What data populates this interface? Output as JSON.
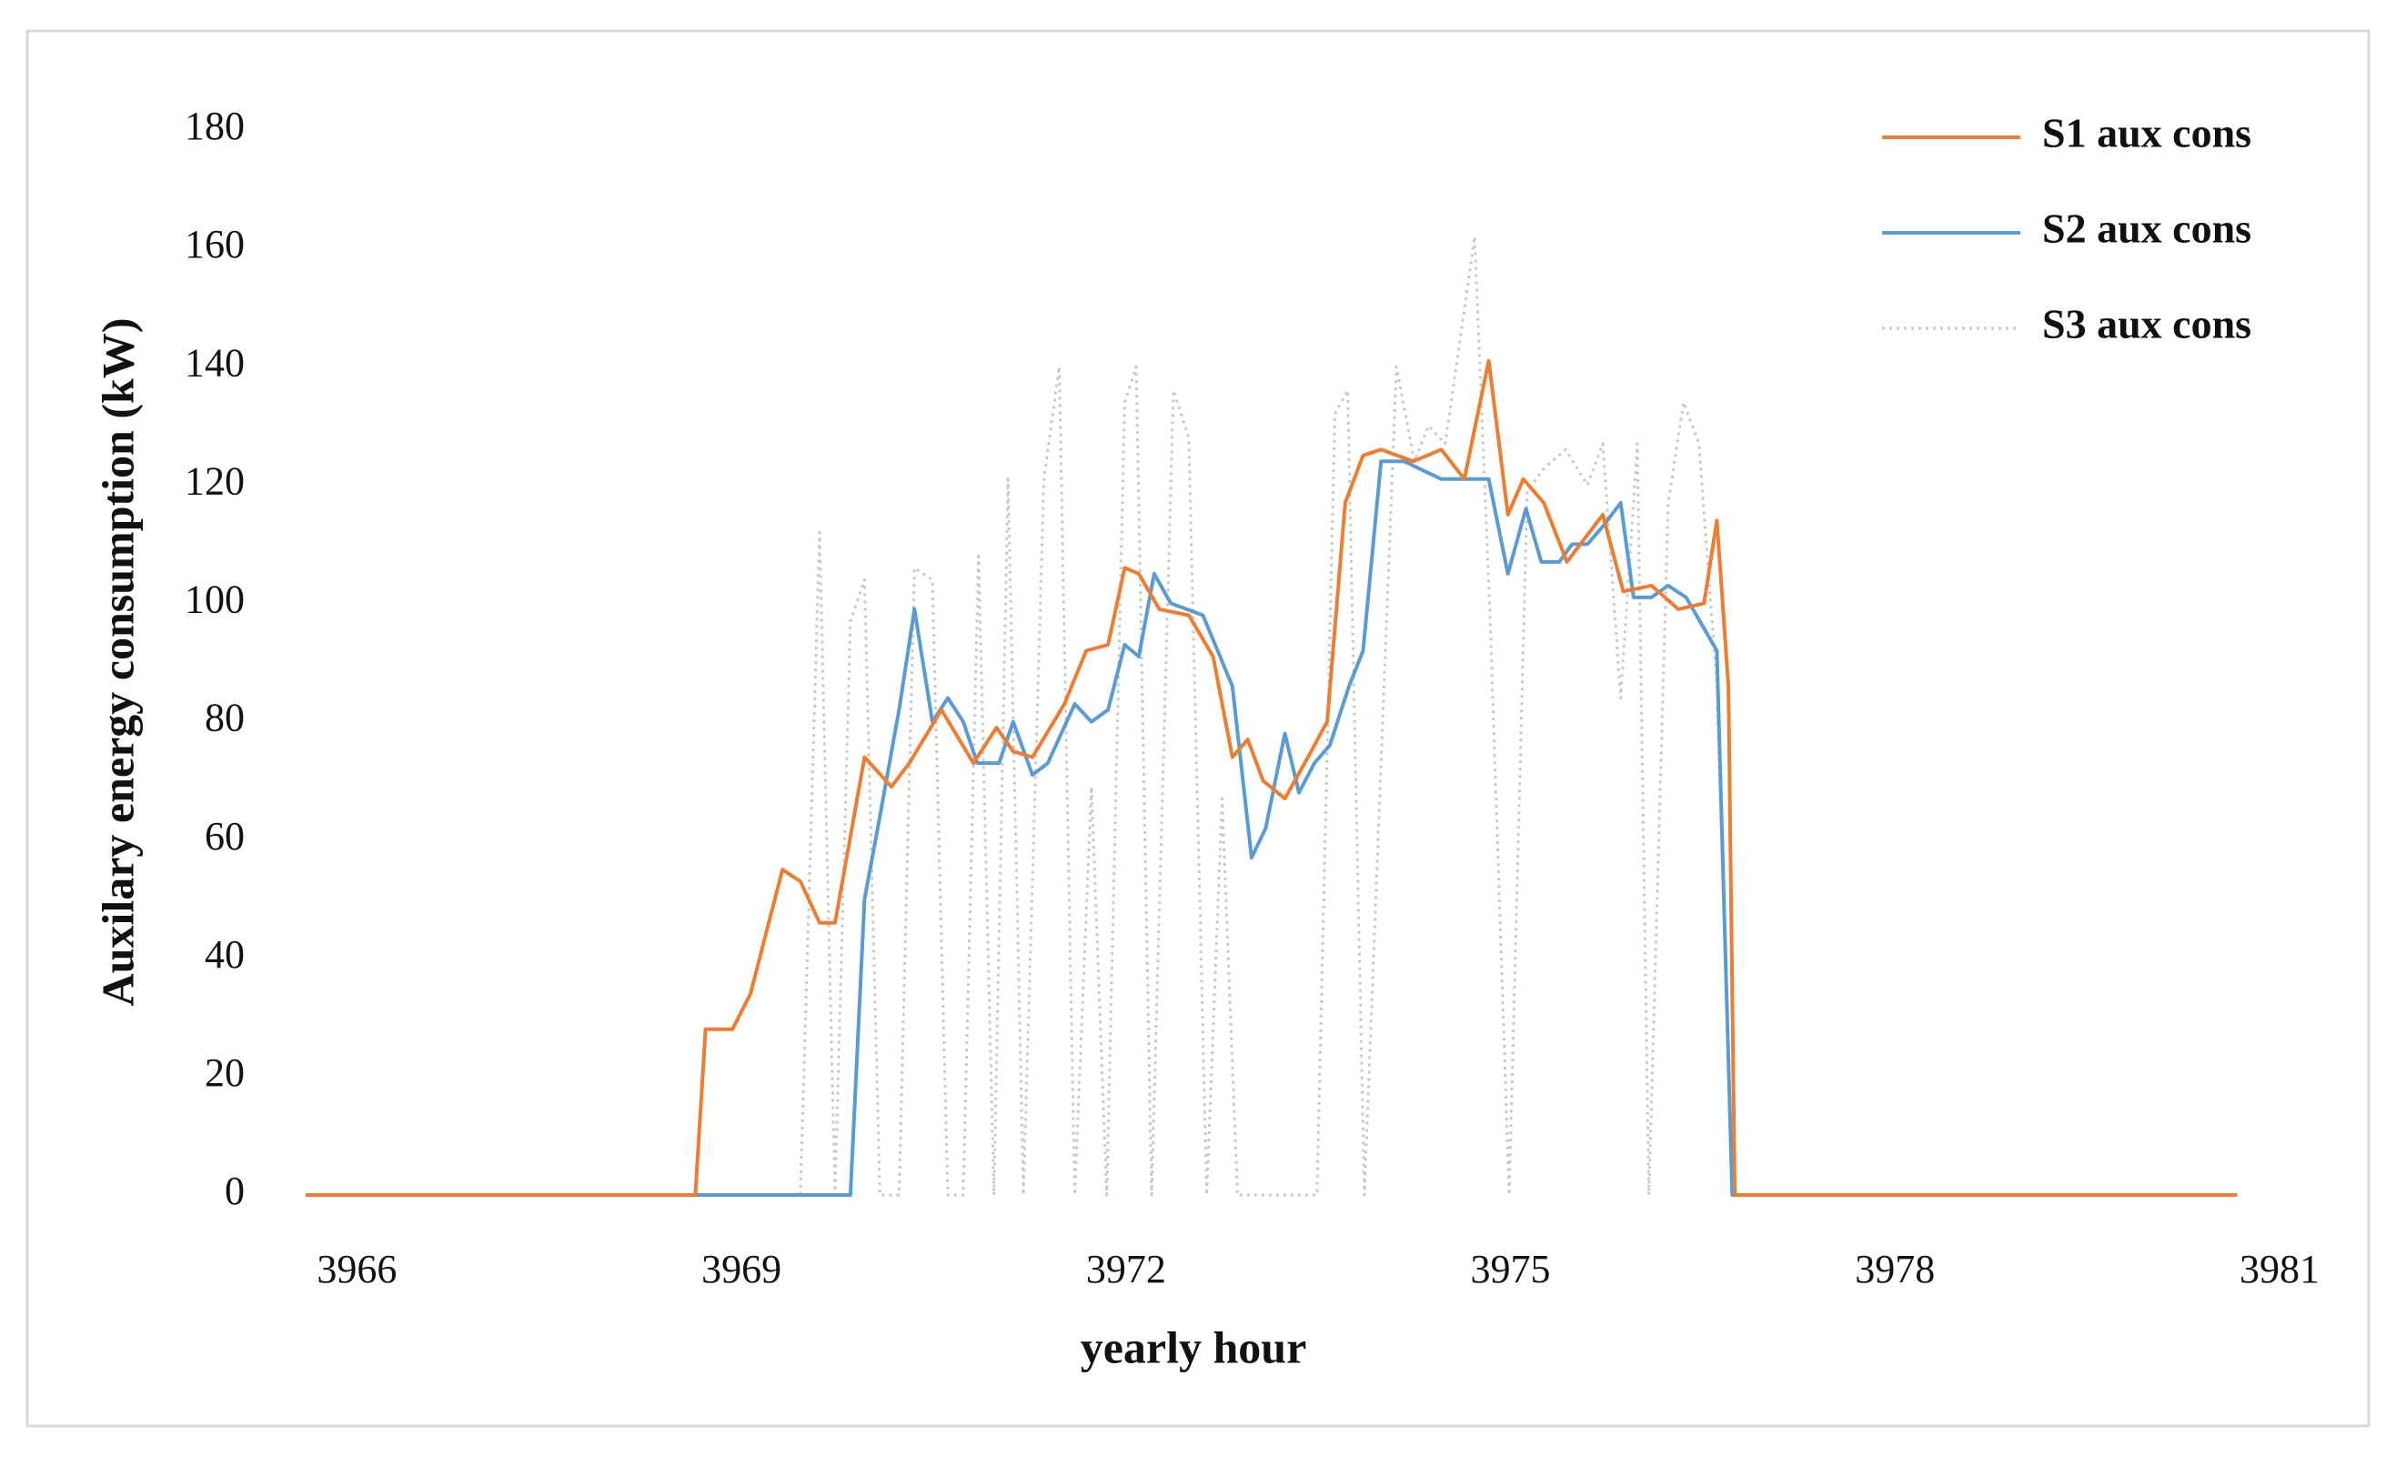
{
  "chart_data": {
    "type": "line",
    "x_label": "yearly hour",
    "y_label": "Auxilary energy consumption (kW)",
    "xlim": [
      3965.6,
      3981
    ],
    "xticks": [
      3966,
      3969,
      3972,
      3975,
      3978,
      3981
    ],
    "ylim": [
      0,
      180
    ],
    "yticks": [
      0,
      20,
      40,
      60,
      80,
      100,
      120,
      140,
      160,
      180
    ],
    "grid": false,
    "legend_position": "top-right",
    "series": [
      {
        "name": "S1 aux cons",
        "color": "#ed7d31",
        "dash": "solid",
        "x": [
          3965.6,
          3968.64,
          3968.72,
          3968.93,
          3969.07,
          3969.32,
          3969.46,
          3969.61,
          3969.73,
          3969.96,
          3970.17,
          3970.31,
          3970.56,
          3970.81,
          3970.99,
          3971.12,
          3971.27,
          3971.52,
          3971.69,
          3971.86,
          3971.99,
          3972.1,
          3972.26,
          3972.49,
          3972.68,
          3972.83,
          3972.95,
          3973.07,
          3973.24,
          3973.42,
          3973.57,
          3973.71,
          3973.85,
          3973.99,
          3974.24,
          3974.46,
          3974.64,
          3974.83,
          3974.98,
          3975.1,
          3975.26,
          3975.44,
          3975.72,
          3975.88,
          3976.1,
          3976.31,
          3976.51,
          3976.61,
          3976.7,
          3976.75,
          3980.67
        ],
        "values": [
          0,
          0,
          28,
          28,
          34,
          55,
          53,
          46,
          46,
          74,
          69,
          73,
          82,
          73,
          79,
          75,
          74,
          83,
          92,
          93,
          106,
          105,
          99,
          98,
          91,
          74,
          77,
          70,
          67,
          74,
          80,
          117,
          125,
          126,
          124,
          126,
          121,
          141,
          115,
          121,
          117,
          107,
          115,
          102,
          103,
          99,
          100,
          114,
          86,
          0,
          0
        ]
      },
      {
        "name": "S2 aux cons",
        "color": "#5b9bd5",
        "dash": "solid",
        "x": [
          3965.6,
          3969.85,
          3969.96,
          3970.08,
          3970.23,
          3970.35,
          3970.49,
          3970.61,
          3970.73,
          3970.84,
          3971.01,
          3971.12,
          3971.27,
          3971.39,
          3971.6,
          3971.73,
          3971.86,
          3971.99,
          3972.1,
          3972.22,
          3972.35,
          3972.6,
          3972.83,
          3972.98,
          3973.09,
          3973.24,
          3973.35,
          3973.47,
          3973.59,
          3973.74,
          3973.85,
          3973.99,
          3974.17,
          3974.46,
          3974.68,
          3974.83,
          3974.98,
          3975.12,
          3975.24,
          3975.38,
          3975.48,
          3975.6,
          3975.72,
          3975.86,
          3975.96,
          3976.1,
          3976.23,
          3976.37,
          3976.61,
          3976.73,
          3980.67
        ],
        "values": [
          0,
          0,
          50,
          64,
          82,
          99,
          80,
          84,
          80,
          73,
          73,
          80,
          71,
          73,
          83,
          80,
          82,
          93,
          91,
          105,
          100,
          98,
          86,
          57,
          62,
          78,
          68,
          73,
          76,
          86,
          92,
          124,
          124,
          121,
          121,
          121,
          105,
          116,
          107,
          107,
          110,
          110,
          113,
          117,
          101,
          101,
          103,
          101,
          92,
          0,
          0
        ]
      },
      {
        "name": "S3 aux cons",
        "color": "#c8c8c8",
        "dash": "dotted",
        "x": [
          3965.6,
          3969.46,
          3969.61,
          3969.73,
          3969.85,
          3969.96,
          3970.08,
          3970.23,
          3970.35,
          3970.49,
          3970.61,
          3970.73,
          3970.85,
          3970.97,
          3971.08,
          3971.2,
          3971.36,
          3971.48,
          3971.6,
          3971.73,
          3971.85,
          3971.99,
          3972.08,
          3972.2,
          3972.37,
          3972.49,
          3972.63,
          3972.75,
          3972.87,
          3973.49,
          3973.63,
          3973.73,
          3973.86,
          3974.11,
          3974.25,
          3974.36,
          3974.49,
          3974.59,
          3974.72,
          3974.84,
          3974.99,
          3975.13,
          3975.27,
          3975.43,
          3975.6,
          3975.72,
          3975.86,
          3975.99,
          3976.08,
          3976.23,
          3976.35,
          3976.47,
          3976.61,
          3976.73,
          3980.67
        ],
        "values": [
          0,
          0,
          112,
          0,
          97,
          104,
          0,
          0,
          106,
          104,
          0,
          0,
          108,
          0,
          121,
          0,
          121,
          140,
          0,
          69,
          0,
          134,
          140,
          0,
          136,
          128,
          0,
          67,
          0,
          0,
          132,
          136,
          0,
          140,
          124,
          130,
          127,
          142,
          162,
          98,
          0,
          119,
          123,
          126,
          120,
          127,
          84,
          127,
          0,
          117,
          134,
          127,
          86,
          0,
          0
        ]
      }
    ]
  }
}
